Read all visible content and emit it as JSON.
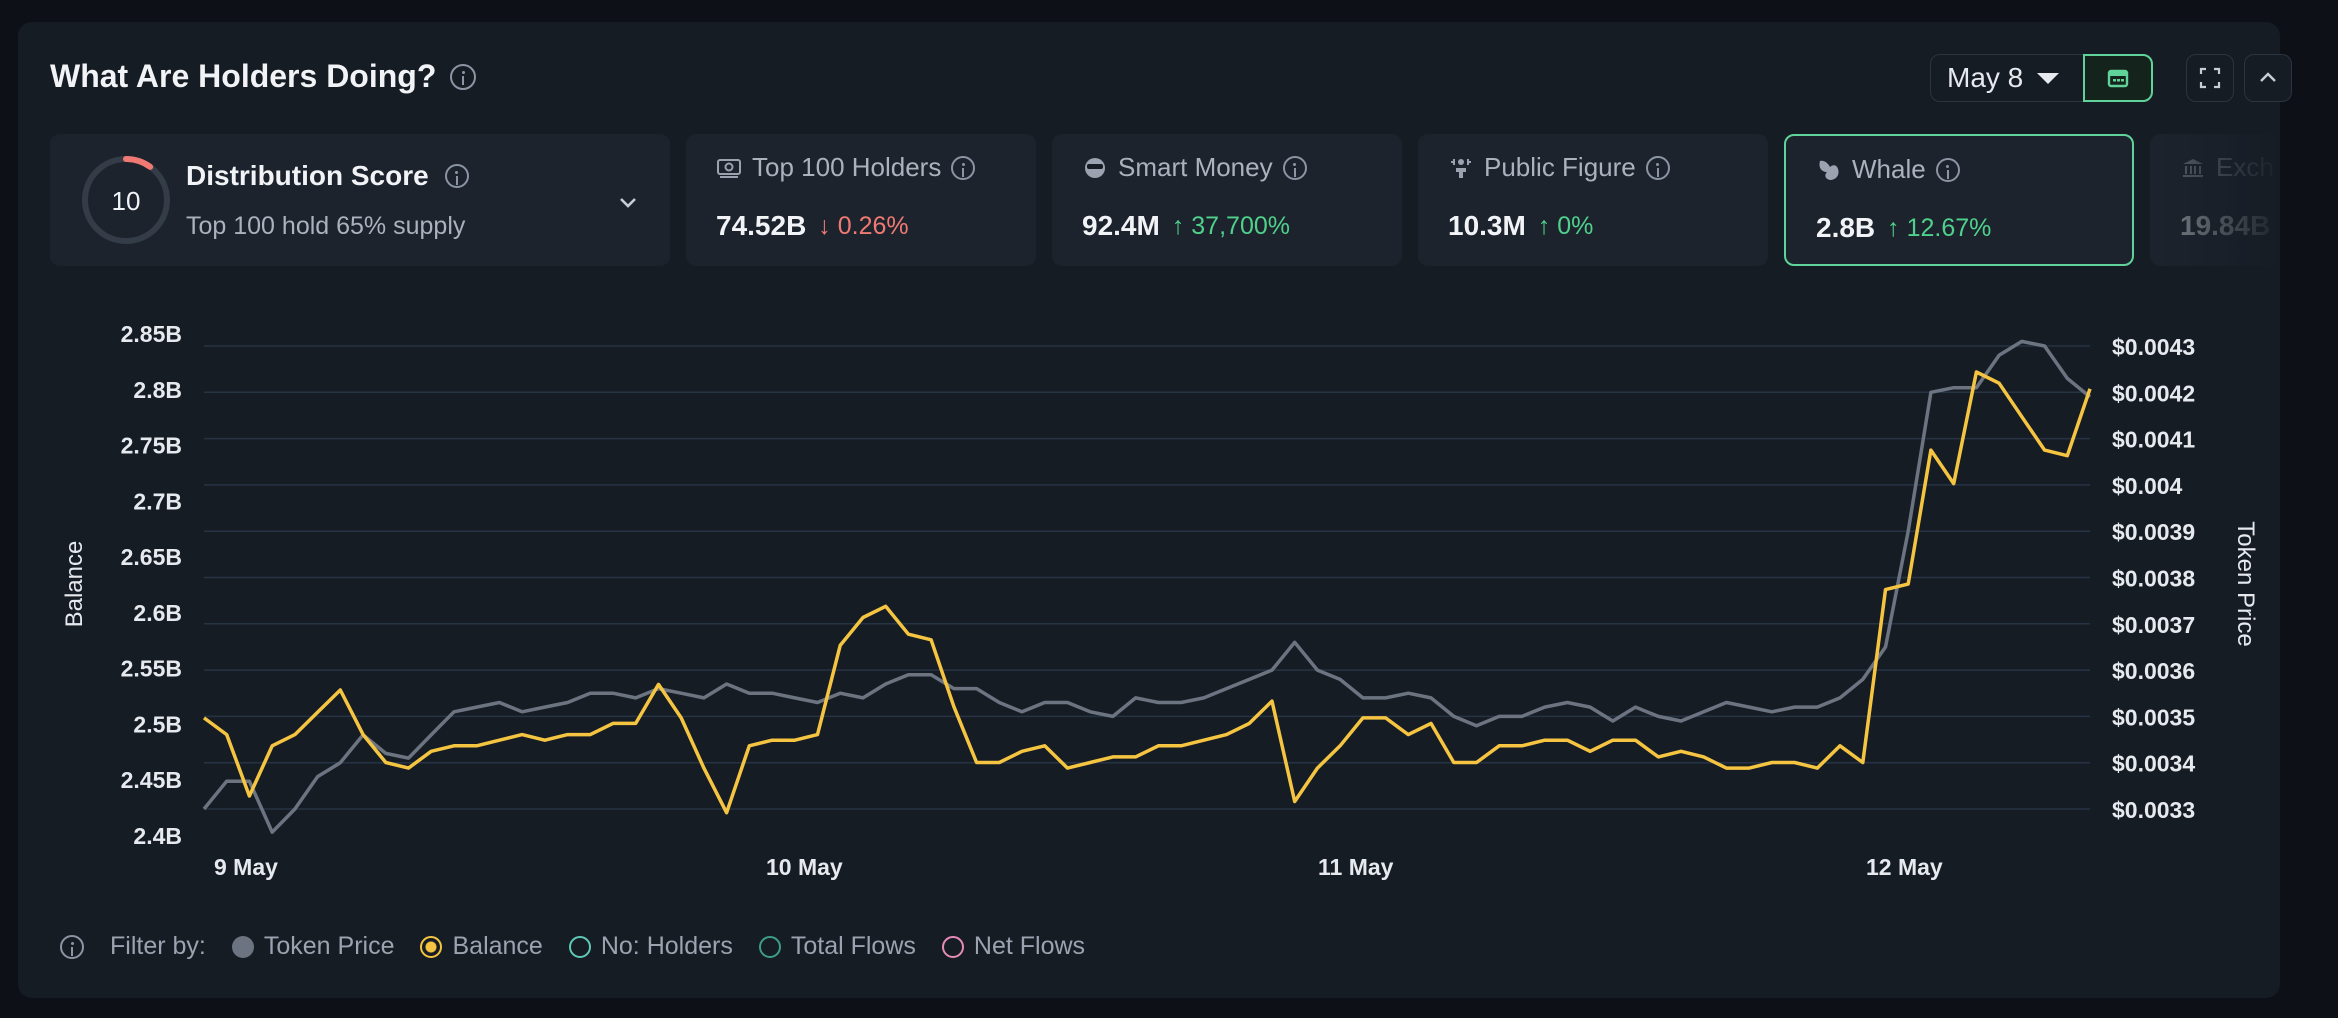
{
  "header": {
    "title": "What Are Holders Doing?",
    "date_value": "May 8"
  },
  "score_card": {
    "score": "10",
    "title": "Distribution Score",
    "subtitle": "Top 100 hold 65% supply",
    "ring_fraction": 0.1,
    "ring_color": "#f07a73"
  },
  "cards": [
    {
      "label": "Top 100 Holders",
      "value": "74.52B",
      "delta": "0.26%",
      "direction": "down",
      "icon": "cash-icon"
    },
    {
      "label": "Smart Money",
      "value": "92.4M",
      "delta": "37,700%",
      "direction": "up",
      "icon": "sunglasses-icon"
    },
    {
      "label": "Public Figure",
      "value": "10.3M",
      "delta": "0%",
      "direction": "up",
      "icon": "podium-icon"
    },
    {
      "label": "Whale",
      "value": "2.8B",
      "delta": "12.67%",
      "direction": "up",
      "icon": "whale-icon"
    },
    {
      "label": "Exch",
      "value": "19.84B",
      "delta": "",
      "direction": "",
      "icon": "bank-icon"
    }
  ],
  "colors": {
    "balance": "#f5c542",
    "token_price": "#6b7480",
    "grid": "#263344",
    "holders": "#5fc9b7",
    "flows": "#3d9c8a",
    "net_flows": "#e58bb8"
  },
  "filters": {
    "label": "Filter by:",
    "items": [
      {
        "label": "Token Price",
        "style": "filled",
        "color": "#6b7480"
      },
      {
        "label": "Balance",
        "style": "active",
        "color": "#f5c542"
      },
      {
        "label": "No: Holders",
        "style": "outline",
        "color": "#5fc9b7"
      },
      {
        "label": "Total Flows",
        "style": "outline",
        "color": "#3d9c8a"
      },
      {
        "label": "Net Flows",
        "style": "outline",
        "color": "#e58bb8"
      }
    ]
  },
  "chart_data": {
    "type": "line",
    "ylabel": "Balance",
    "y2label": "Token Price",
    "ylim": [
      2.4,
      2.85
    ],
    "y_ticks": [
      "2.85B",
      "2.8B",
      "2.75B",
      "2.7B",
      "2.65B",
      "2.6B",
      "2.55B",
      "2.5B",
      "2.45B",
      "2.4B"
    ],
    "y_tick_values": [
      2.85,
      2.8,
      2.75,
      2.7,
      2.65,
      2.6,
      2.55,
      2.5,
      2.45,
      2.4
    ],
    "y2lim": [
      0.0033,
      0.0043
    ],
    "y2_ticks": [
      "$0.0043",
      "$0.0042",
      "$0.0041",
      "$0.004",
      "$0.0039",
      "$0.0038",
      "$0.0037",
      "$0.0036",
      "$0.0035",
      "$0.0034",
      "$0.0033"
    ],
    "y2_tick_values": [
      0.0043,
      0.0042,
      0.0041,
      0.004,
      0.0039,
      0.0038,
      0.0037,
      0.0036,
      0.0035,
      0.0034,
      0.0033
    ],
    "x_ticks": [
      "9 May",
      "10 May",
      "11 May",
      "12 May"
    ],
    "grid": true,
    "series": [
      {
        "name": "Balance",
        "axis": "left",
        "values": [
          2.505,
          2.49,
          2.435,
          2.48,
          2.49,
          2.51,
          2.53,
          2.49,
          2.465,
          2.46,
          2.475,
          2.48,
          2.48,
          2.485,
          2.49,
          2.485,
          2.49,
          2.49,
          2.5,
          2.5,
          2.535,
          2.505,
          2.46,
          2.42,
          2.48,
          2.485,
          2.485,
          2.49,
          2.57,
          2.595,
          2.605,
          2.58,
          2.575,
          2.515,
          2.465,
          2.465,
          2.475,
          2.48,
          2.46,
          2.465,
          2.47,
          2.47,
          2.48,
          2.48,
          2.485,
          2.49,
          2.5,
          2.52,
          2.43,
          2.46,
          2.48,
          2.505,
          2.505,
          2.49,
          2.5,
          2.465,
          2.465,
          2.48,
          2.48,
          2.485,
          2.485,
          2.475,
          2.485,
          2.485,
          2.47,
          2.475,
          2.47,
          2.46,
          2.46,
          2.465,
          2.465,
          2.46,
          2.48,
          2.465,
          2.62,
          2.625,
          2.745,
          2.715,
          2.815,
          2.805,
          2.775,
          2.745,
          2.74,
          2.8
        ]
      },
      {
        "name": "Token Price",
        "axis": "right",
        "values": [
          0.0033,
          0.00336,
          0.00336,
          0.00325,
          0.0033,
          0.00337,
          0.0034,
          0.00346,
          0.00342,
          0.00341,
          0.00346,
          0.00351,
          0.00352,
          0.00353,
          0.00351,
          0.00352,
          0.00353,
          0.00355,
          0.00355,
          0.00354,
          0.00356,
          0.00355,
          0.00354,
          0.00357,
          0.00355,
          0.00355,
          0.00354,
          0.00353,
          0.00355,
          0.00354,
          0.00357,
          0.00359,
          0.00359,
          0.00356,
          0.00356,
          0.00353,
          0.00351,
          0.00353,
          0.00353,
          0.00351,
          0.0035,
          0.00354,
          0.00353,
          0.00353,
          0.00354,
          0.00356,
          0.00358,
          0.0036,
          0.00366,
          0.0036,
          0.00358,
          0.00354,
          0.00354,
          0.00355,
          0.00354,
          0.0035,
          0.00348,
          0.0035,
          0.0035,
          0.00352,
          0.00353,
          0.00352,
          0.00349,
          0.00352,
          0.0035,
          0.00349,
          0.00351,
          0.00353,
          0.00352,
          0.00351,
          0.00352,
          0.00352,
          0.00354,
          0.00358,
          0.00365,
          0.0039,
          0.0042,
          0.00421,
          0.00421,
          0.00428,
          0.00431,
          0.0043,
          0.00423,
          0.00419
        ]
      }
    ]
  }
}
